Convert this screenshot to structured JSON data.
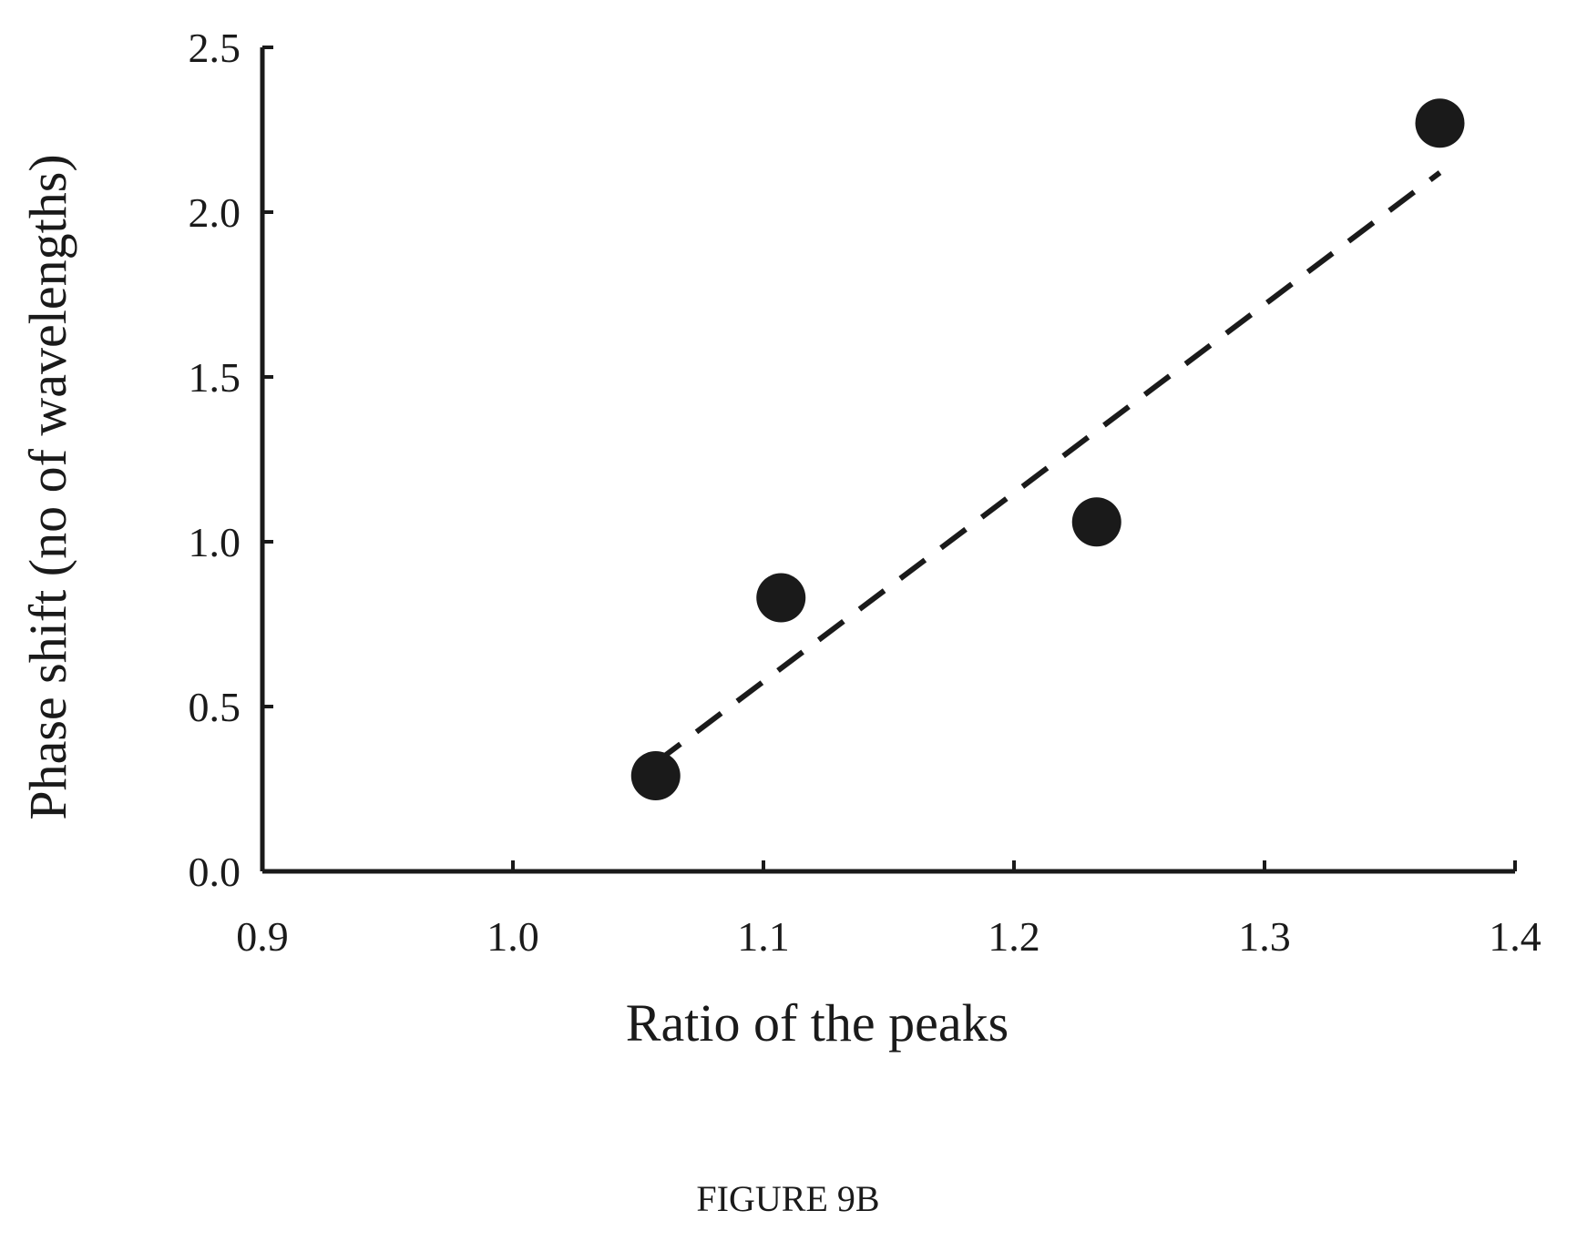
{
  "chart_data": {
    "type": "scatter",
    "xlabel": "Ratio of the peaks",
    "ylabel": "Phase shift (no of wavelengths)",
    "xlim": [
      0.9,
      1.4
    ],
    "ylim": [
      0.0,
      2.5
    ],
    "x_ticks": [
      "0.9",
      "1.0",
      "1.1",
      "1.2",
      "1.3",
      "1.4"
    ],
    "y_ticks": [
      "0.0",
      "0.5",
      "1.0",
      "1.5",
      "2.0",
      "2.5"
    ],
    "grid": false,
    "series": [
      {
        "marker": "filled-circle",
        "color": "#1a1a1a",
        "points": [
          {
            "x": 1.057,
            "y": 0.29
          },
          {
            "x": 1.107,
            "y": 0.83
          },
          {
            "x": 1.233,
            "y": 1.06
          },
          {
            "x": 1.37,
            "y": 2.27
          }
        ]
      }
    ],
    "trendline": {
      "style": "dashed",
      "color": "#1a1a1a",
      "from": {
        "x": 1.057,
        "y": 0.33
      },
      "to": {
        "x": 1.37,
        "y": 2.12
      }
    }
  },
  "figure": {
    "caption": "FIGURE 9B"
  }
}
